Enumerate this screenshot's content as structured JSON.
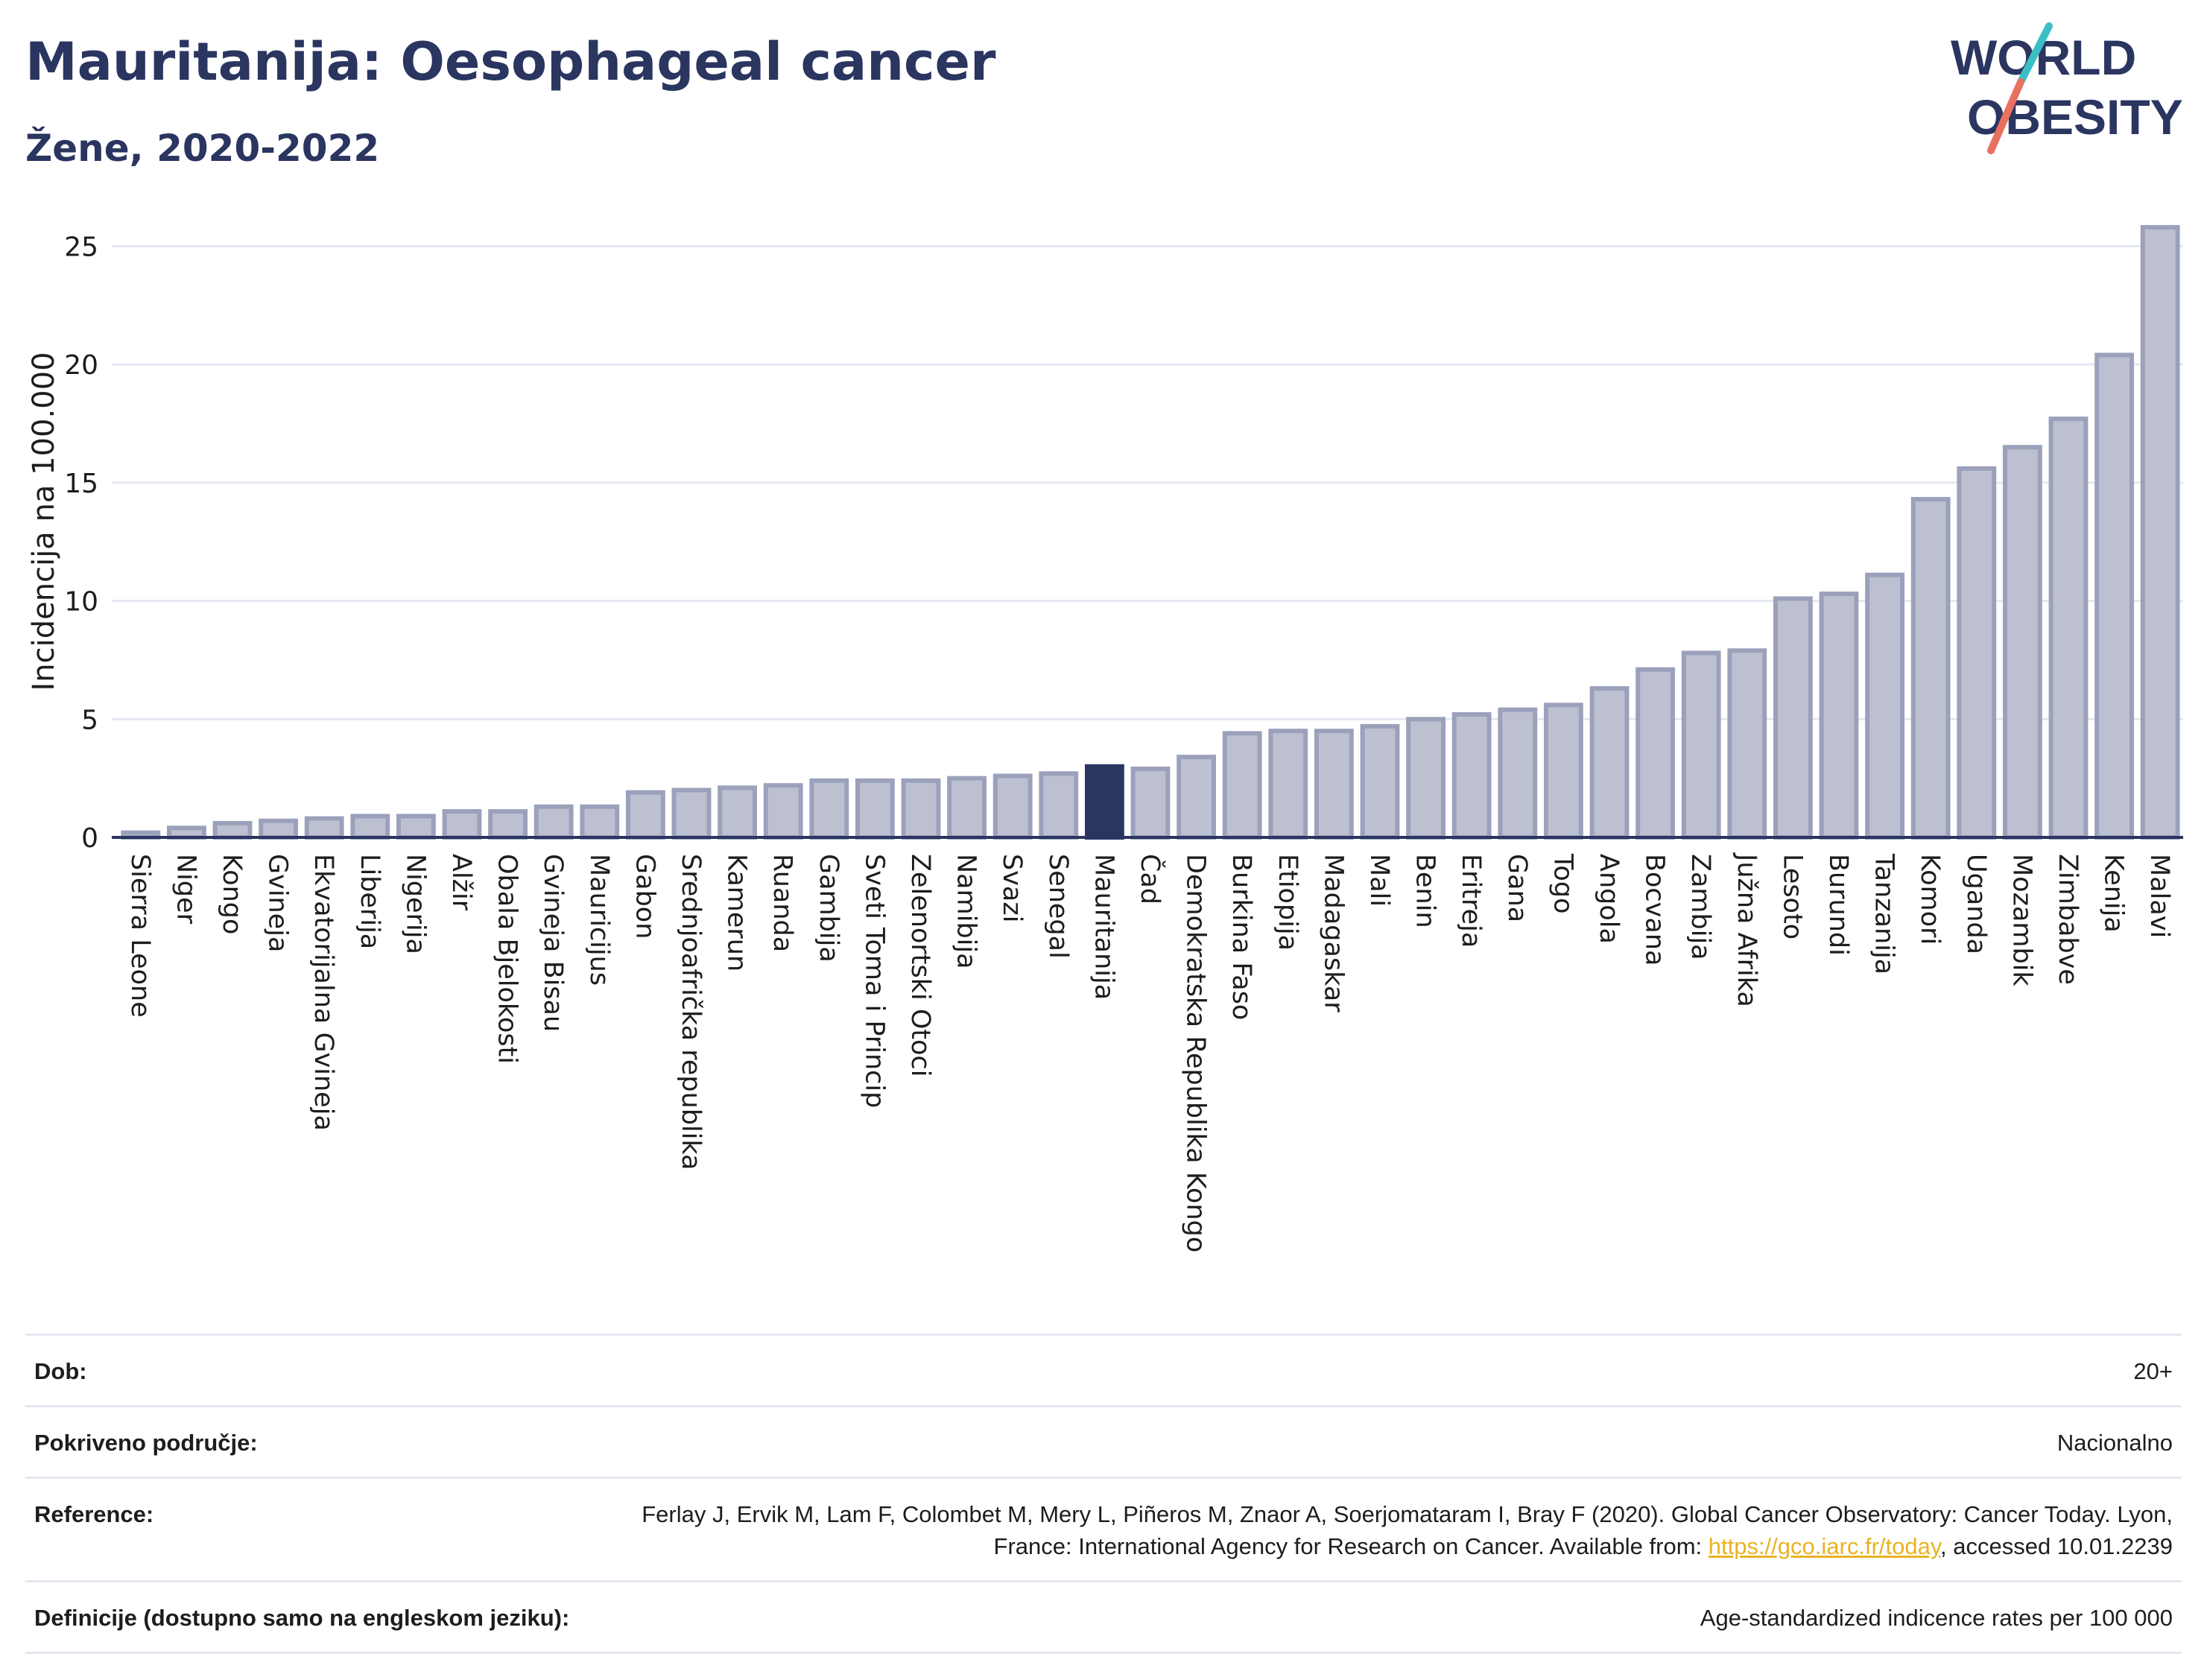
{
  "header": {
    "title": "Mauritanija: Oesophageal cancer",
    "subtitle": "Žene, 2020-2022"
  },
  "logo": {
    "line1": "WORLD",
    "line2": "OBESITY",
    "colors": {
      "text": "#2a3560",
      "slash_teal": "#3bbfc4",
      "slash_coral": "#e8705f"
    }
  },
  "chart_data": {
    "type": "bar",
    "title": "Mauritanija: Oesophageal cancer",
    "subtitle": "Žene, 2020-2022",
    "ylabel": "Incidencija na 100.000",
    "xlabel": "",
    "ylim": [
      0,
      27
    ],
    "yticks": [
      0,
      5,
      10,
      15,
      20,
      25
    ],
    "grid": true,
    "highlight": "Mauritanija",
    "colors": {
      "bar": "#bcc0d0",
      "bar_stroke": "#9ba1bb",
      "highlight": "#2a3560",
      "grid": "#e3e8f0",
      "axis": "#2a3560"
    },
    "categories": [
      "Sierra Leone",
      "Niger",
      "Kongo",
      "Gvineja",
      "Ekvatorijalna Gvineja",
      "Liberija",
      "Nigerija",
      "Alžir",
      "Obala Bjelokosti",
      "Gvineja Bisau",
      "Mauricijus",
      "Gabon",
      "Srednjoafrička republika",
      "Kamerun",
      "Ruanda",
      "Gambija",
      "Sveti Toma i Princip",
      "Zelenortski Otoci",
      "Namibija",
      "Svazi",
      "Senegal",
      "Mauritanija",
      "Čad",
      "Demokratska Republika Kongo",
      "Burkina Faso",
      "Etiopija",
      "Madagaskar",
      "Mali",
      "Benin",
      "Eritreja",
      "Gana",
      "Togo",
      "Angola",
      "Bocvana",
      "Zambija",
      "Južna Afrika",
      "Lesoto",
      "Burundi",
      "Tanzanija",
      "Komori",
      "Uganda",
      "Mozambik",
      "Zimbabve",
      "Kenija",
      "Malavi"
    ],
    "values": [
      0.2,
      0.4,
      0.6,
      0.7,
      0.8,
      0.9,
      0.9,
      1.1,
      1.1,
      1.3,
      1.3,
      1.9,
      2.0,
      2.1,
      2.2,
      2.4,
      2.4,
      2.4,
      2.5,
      2.6,
      2.7,
      3.0,
      2.9,
      3.4,
      4.4,
      4.5,
      4.5,
      4.7,
      5.0,
      5.2,
      5.4,
      5.6,
      6.3,
      7.1,
      7.8,
      7.9,
      10.1,
      10.3,
      11.1,
      14.3,
      15.6,
      16.5,
      17.7,
      20.4,
      25.8
    ]
  },
  "info": {
    "rows": [
      {
        "label": "Dob:",
        "value": "20+"
      },
      {
        "label": "Pokriveno područje:",
        "value": "Nacionalno"
      },
      {
        "label": "Reference:",
        "value_before": "Ferlay J, Ervik M, Lam F, Colombet M, Mery L, Piñeros M, Znaor A, Soerjomataram I, Bray F (2020). Global Cancer Observatory: Cancer Today. Lyon, France: International Agency for Research on Cancer. Available from: ",
        "link": "https://gco.iarc.fr/today",
        "value_after": ", accessed 10.01.2239"
      },
      {
        "label": "Definicije (dostupno samo na engleskom jeziku):",
        "value": "Age-standardized indicence rates per 100 000"
      }
    ]
  }
}
